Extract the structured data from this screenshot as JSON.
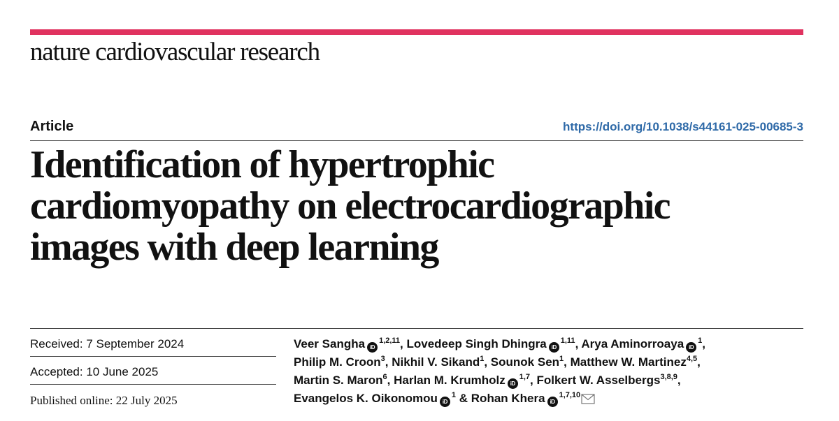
{
  "journal": {
    "name": "nature cardiovascular research",
    "accent_color": "#e0325f"
  },
  "article": {
    "type": "Article",
    "doi": "https://doi.org/10.1038/s44161-025-00685-3",
    "title_lines": [
      "Identification of hypertrophic",
      "cardiomyopathy on electrocardiographic",
      "images with deep learning"
    ]
  },
  "dates": {
    "received": "Received: 7 September 2024",
    "accepted": "Accepted: 10 June 2025",
    "published": "Published online: 22 July 2025"
  },
  "authors": [
    {
      "name": "Veer Sangha",
      "orcid": true,
      "affil": "1,2,11"
    },
    {
      "name": "Lovedeep Singh Dhingra",
      "orcid": true,
      "affil": "1,11"
    },
    {
      "name": "Arya Aminorroaya",
      "orcid": true,
      "affil": "1"
    },
    {
      "name": "Philip M. Croon",
      "orcid": false,
      "affil": "3"
    },
    {
      "name": "Nikhil V. Sikand",
      "orcid": false,
      "affil": "1"
    },
    {
      "name": "Sounok Sen",
      "orcid": false,
      "affil": "1"
    },
    {
      "name": "Matthew W. Martinez",
      "orcid": false,
      "affil": "4,5"
    },
    {
      "name": "Martin S. Maron",
      "orcid": false,
      "affil": "6"
    },
    {
      "name": "Harlan M. Krumholz",
      "orcid": true,
      "affil": "1,7"
    },
    {
      "name": "Folkert W. Asselbergs",
      "orcid": false,
      "affil": "3,8,9"
    },
    {
      "name": "Evangelos K. Oikonomou",
      "orcid": true,
      "affil": "1"
    },
    {
      "name": "Rohan Khera",
      "orcid": true,
      "affil": "1,7,10",
      "corresponding": true
    }
  ],
  "orcid_icon_text": "iD",
  "icons": {
    "orcid": "orcid-icon",
    "mail": "mail-icon"
  }
}
